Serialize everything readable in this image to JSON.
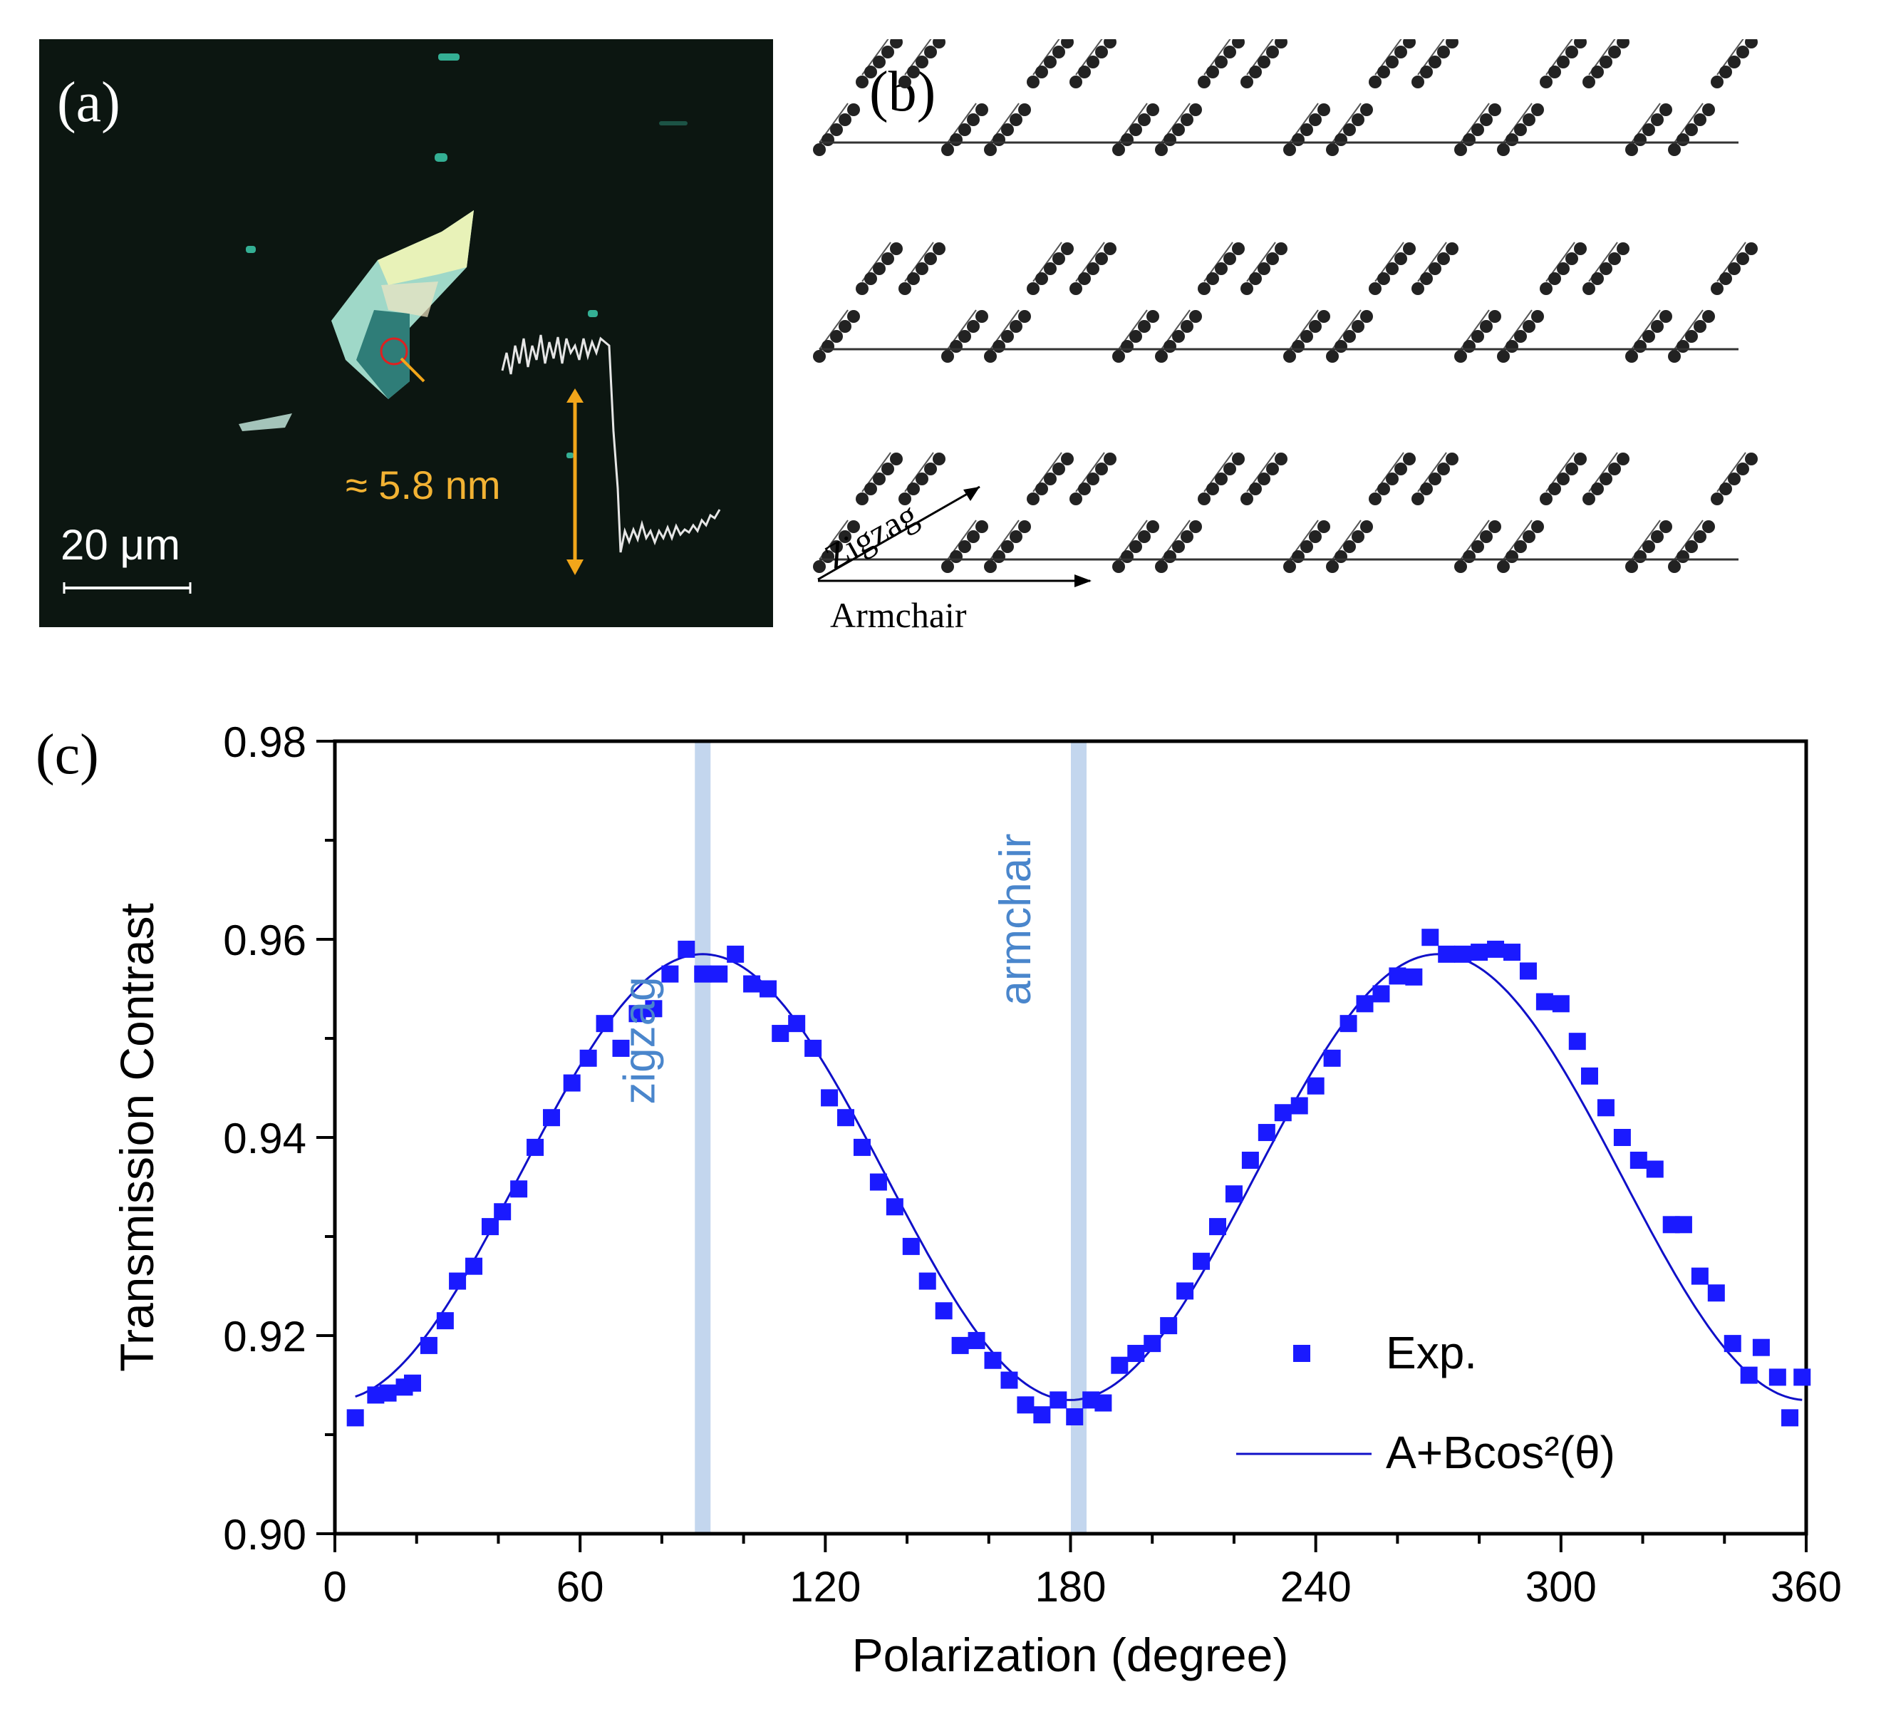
{
  "panel_a": {
    "label": "(a)",
    "scale_bar": "20 μm",
    "thickness": "≈ 5.8 nm"
  },
  "panel_b": {
    "label": "(b)",
    "zigzag_axis": "Zigzag",
    "armchair_axis": "Armchair"
  },
  "panel_c": {
    "label": "(c)"
  },
  "colors": {
    "marker": "#1a1aff",
    "fit": "#1010c8",
    "band": "#c3d6ee",
    "band_text": "#4a86cc"
  },
  "chart_data": {
    "type": "scatter",
    "xlabel": "Polarization (degree)",
    "ylabel": "Transmission Contrast",
    "xlim": [
      0,
      360
    ],
    "ylim": [
      0.9,
      0.98
    ],
    "xticks": [
      "0",
      "60",
      "120",
      "180",
      "240",
      "300",
      "360"
    ],
    "yticks": [
      "0.90",
      "0.92",
      "0.94",
      "0.96",
      "0.98"
    ],
    "annotations": [
      {
        "text": "zigzag",
        "x": 90
      },
      {
        "text": "armchair",
        "x": 182
      }
    ],
    "legend": {
      "position": "bottom-right",
      "entries": [
        "Exp.",
        "A+Bcos²(θ)"
      ]
    },
    "fit": {
      "label": "A+Bcos²(θ)",
      "A": 0.9135,
      "B": 0.045,
      "phase_deg": 270,
      "period_deg": 180
    },
    "series": [
      {
        "name": "Exp.",
        "x": [
          5,
          10,
          13,
          17,
          19,
          23,
          27,
          30,
          34,
          38,
          41,
          45,
          49,
          53,
          58,
          62,
          66,
          70,
          74,
          78,
          82,
          86,
          90,
          94,
          98,
          102,
          106,
          109,
          113,
          117,
          121,
          125,
          129,
          133,
          137,
          141,
          145,
          149,
          153,
          157,
          161,
          165,
          169,
          173,
          177,
          181,
          185,
          188,
          192,
          196,
          200,
          204,
          208,
          212,
          216,
          220,
          224,
          228,
          232,
          236,
          240,
          244,
          248,
          252,
          256,
          260,
          264,
          268,
          272,
          276,
          280,
          284,
          288,
          292,
          296,
          300,
          304,
          307,
          311,
          315,
          319,
          323,
          327,
          330,
          334,
          338,
          342,
          346,
          349,
          353,
          356,
          359
        ],
        "y": [
          0.9117,
          0.914,
          0.9142,
          0.9148,
          0.9152,
          0.919,
          0.9215,
          0.9255,
          0.927,
          0.931,
          0.9325,
          0.9348,
          0.939,
          0.942,
          0.9455,
          0.948,
          0.9515,
          0.949,
          0.9525,
          0.953,
          0.9565,
          0.959,
          0.9565,
          0.9565,
          0.9585,
          0.9555,
          0.955,
          0.9505,
          0.9515,
          0.949,
          0.944,
          0.942,
          0.939,
          0.9355,
          0.933,
          0.929,
          0.9255,
          0.9225,
          0.919,
          0.9195,
          0.9175,
          0.9155,
          0.913,
          0.912,
          0.9135,
          0.9118,
          0.9135,
          0.9132,
          0.917,
          0.9182,
          0.9192,
          0.921,
          0.9245,
          0.9275,
          0.931,
          0.9343,
          0.9377,
          0.9405,
          0.9425,
          0.9432,
          0.9452,
          0.948,
          0.9515,
          0.9535,
          0.9545,
          0.9563,
          0.9562,
          0.9602,
          0.9585,
          0.9585,
          0.9587,
          0.959,
          0.9587,
          0.9568,
          0.9537,
          0.9535,
          0.9497,
          0.9462,
          0.943,
          0.94,
          0.9377,
          0.9368,
          0.9312,
          0.9312,
          0.926,
          0.9243,
          0.9192,
          0.916,
          0.9188,
          0.9158,
          0.9117,
          0.9158
        ]
      }
    ]
  }
}
